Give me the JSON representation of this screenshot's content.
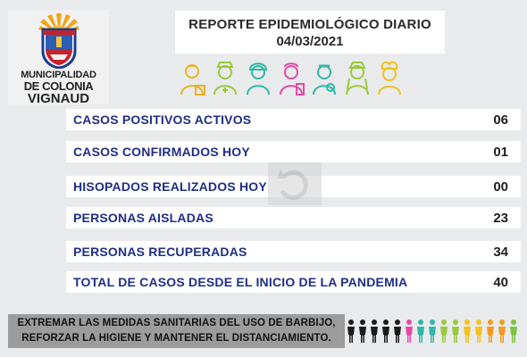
{
  "logo": {
    "line1": "MUNICIPALIDAD",
    "line2": "DE COLONIA",
    "line3": "VIGNAUD"
  },
  "header": {
    "title": "REPORTE EPIDEMIOLÓGICO DIARIO",
    "date": "04/03/2021"
  },
  "rows": [
    {
      "label": "CASOS POSITIVOS ACTIVOS",
      "value": "06"
    },
    {
      "label": "CASOS CONFIRMADOS HOY",
      "value": "01"
    },
    {
      "label": "HISOPADOS REALIZADOS HOY",
      "value": "00"
    },
    {
      "label": "PERSONAS AISLADAS",
      "value": "23"
    },
    {
      "label": "PERSONAS RECUPERADAS",
      "value": "34"
    },
    {
      "label": "TOTAL DE CASOS DESDE EL INICIO DE LA PANDEMIA",
      "value": "40"
    }
  ],
  "footer": {
    "line1": "EXTREMAR LAS MEDIDAS SANITARIAS DEL USO DE BARBIJO,",
    "line2": "REFORZAR LA HIGIENE Y MANTENER EL DISTANCIAMIENTO."
  },
  "icons": {
    "workers": [
      "doctor-icon",
      "nurse-icon",
      "worker-icon",
      "pharmacist-icon",
      "medic-icon",
      "caregiver-icon",
      "chef-icon"
    ],
    "people_colors": [
      "#1b1b1b",
      "#1b1b1b",
      "#1b1b1b",
      "#1b1b1b",
      "#1b1b1b",
      "#e24aa7",
      "#2fb7a7",
      "#2fb7a7",
      "#9ac93b",
      "#9ac93b",
      "#f1c21b",
      "#f1c21b",
      "#f39a1e",
      "#f39a1e",
      "#7fc241"
    ]
  }
}
